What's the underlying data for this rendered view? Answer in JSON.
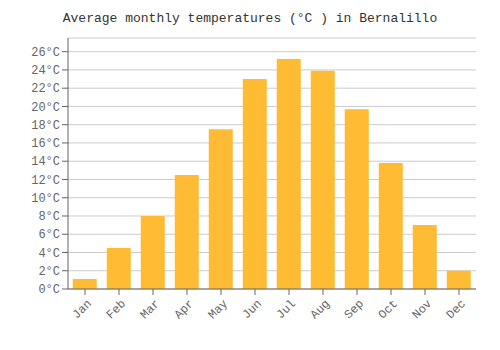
{
  "chart_data": {
    "type": "bar",
    "title": "Average monthly temperatures (°C ) in Bernalillo",
    "categories": [
      "Jan",
      "Feb",
      "Mar",
      "Apr",
      "May",
      "Jun",
      "Jul",
      "Aug",
      "Sep",
      "Oct",
      "Nov",
      "Dec"
    ],
    "values": [
      1.1,
      4.5,
      8.0,
      12.5,
      17.5,
      23.0,
      25.2,
      23.9,
      19.7,
      13.8,
      7.0,
      2.0
    ],
    "color": "#FFBB33",
    "ylim": [
      0,
      27.5
    ],
    "yticks": [
      {
        "value": 0,
        "label": "0°C"
      },
      {
        "value": 2,
        "label": "2°C"
      },
      {
        "value": 4,
        "label": "4°C"
      },
      {
        "value": 6,
        "label": "6°C"
      },
      {
        "value": 8,
        "label": "8°C"
      },
      {
        "value": 10,
        "label": "10°C"
      },
      {
        "value": 12,
        "label": "12°C"
      },
      {
        "value": 14,
        "label": "14°C"
      },
      {
        "value": 16,
        "label": "16°C"
      },
      {
        "value": 18,
        "label": "18°C"
      },
      {
        "value": 20,
        "label": "20°C"
      },
      {
        "value": 22,
        "label": "22°C"
      },
      {
        "value": 24,
        "label": "24°C"
      },
      {
        "value": 26,
        "label": "26°C"
      }
    ],
    "grid": true
  }
}
